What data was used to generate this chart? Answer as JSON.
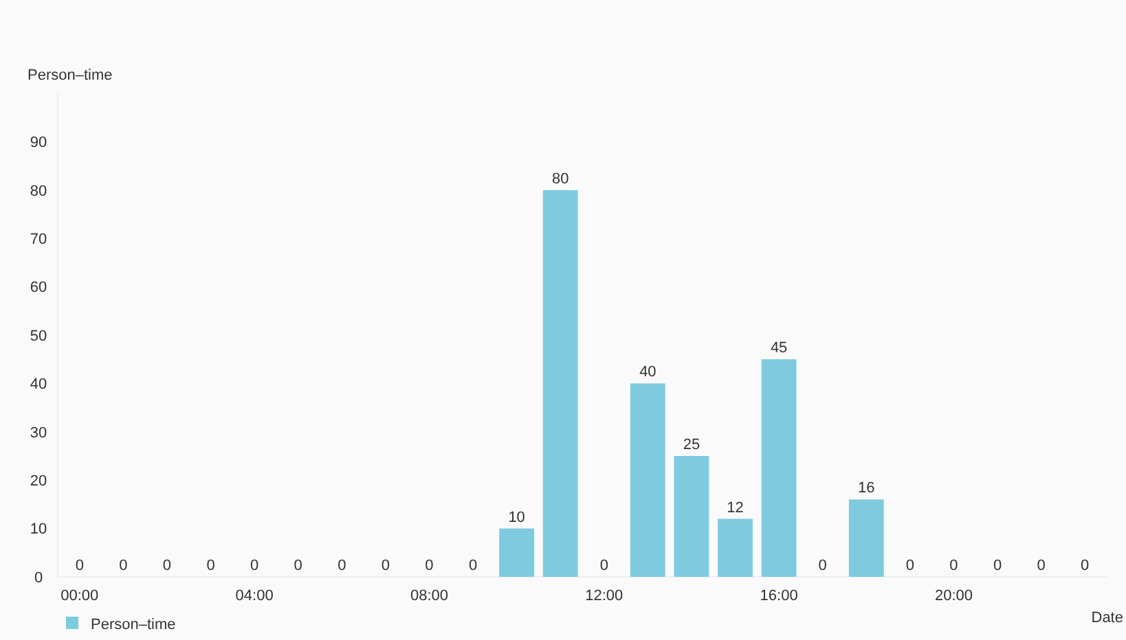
{
  "chart_data": {
    "type": "bar",
    "ylabel": "Person–time",
    "xlabel": "Date",
    "categories": [
      "00:00",
      null,
      null,
      null,
      "04:00",
      null,
      null,
      null,
      "08:00",
      null,
      null,
      null,
      "12:00",
      null,
      null,
      null,
      "16:00",
      null,
      null,
      null,
      "20:00",
      null,
      null,
      null
    ],
    "series": [
      {
        "name": "Person–time",
        "color": "#7ecbe0",
        "values": [
          0,
          0,
          0,
          0,
          0,
          0,
          0,
          0,
          0,
          0,
          10,
          80,
          0,
          40,
          25,
          12,
          45,
          0,
          16,
          0,
          0,
          0,
          0,
          0
        ]
      }
    ],
    "ylim": [
      0,
      100
    ],
    "yticks": [
      0,
      10,
      20,
      30,
      40,
      50,
      60,
      70,
      80,
      90
    ],
    "data_labels": true,
    "legend": "bottom left",
    "grid": false
  }
}
